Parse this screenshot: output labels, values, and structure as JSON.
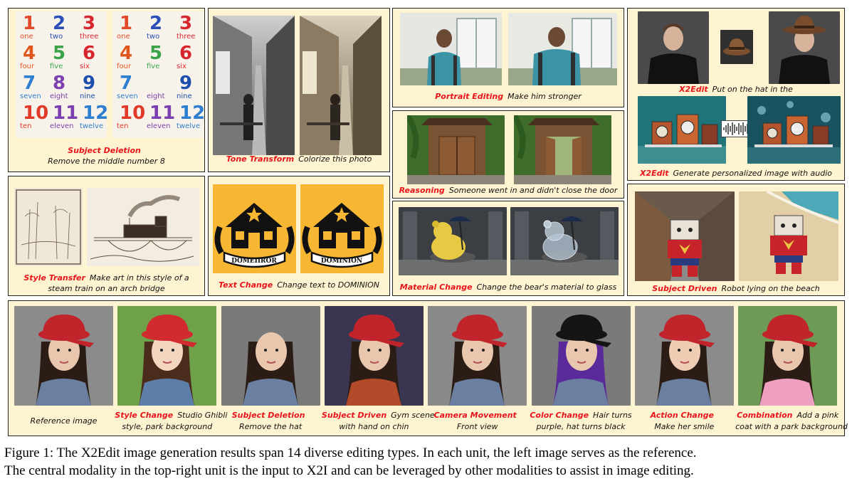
{
  "panels": {
    "subject_deletion": {
      "tag": "Subject Deletion",
      "text": "Remove the middle number 8"
    },
    "tone_transform": {
      "tag": "Tone Transform",
      "text": "Colorize this photo"
    },
    "portrait_editing": {
      "tag": "Portrait Editing",
      "text": "Make him stronger"
    },
    "x2edit_hat": {
      "tag": "X2Edit",
      "text": "Put on the hat in the"
    },
    "reasoning": {
      "tag": "Reasoning",
      "text": "Someone went in and didn't close the door"
    },
    "x2edit_audio": {
      "tag": "X2Edit",
      "text": "Generate personalized image with audio"
    },
    "style_transfer": {
      "tag": "Style Transfer",
      "text1": "Make art in this style of a",
      "text2": "steam train on an arch bridge"
    },
    "text_change": {
      "tag": "Text Change",
      "text": "Change text to DOMINION",
      "logo_before": "DOMEIIROR",
      "logo_after": "DOMINION"
    },
    "material_change": {
      "tag": "Material Change",
      "text": "Change the bear's material to glass"
    },
    "subject_driven": {
      "tag": "Subject Driven",
      "text": "Robot lying on the beach"
    }
  },
  "poster_numbers": [
    {
      "num": "1",
      "word": "one",
      "color": "#e04a2a"
    },
    {
      "num": "2",
      "word": "two",
      "color": "#2b4fb8"
    },
    {
      "num": "3",
      "word": "three",
      "color": "#d8262e"
    },
    {
      "num": "4",
      "word": "four",
      "color": "#e0561f"
    },
    {
      "num": "5",
      "word": "five",
      "color": "#3aa34a"
    },
    {
      "num": "6",
      "word": "six",
      "color": "#d8262e"
    },
    {
      "num": "7",
      "word": "seven",
      "color": "#2f7fd0"
    },
    {
      "num": "8",
      "word": "eight",
      "color": "#7b3fb0"
    },
    {
      "num": "9",
      "word": "nine",
      "color": "#1d4fae"
    },
    {
      "num": "10",
      "word": "ten",
      "color": "#e23a2a"
    },
    {
      "num": "11",
      "word": "eleven",
      "color": "#7b3fb0"
    },
    {
      "num": "12",
      "word": "twelve",
      "color": "#2f7fd0"
    }
  ],
  "poster_after_numbers": [
    "1",
    "2",
    "3",
    "4",
    "5",
    "6",
    "7",
    "",
    "9",
    "10",
    "11",
    "12"
  ],
  "bottom_row": [
    {
      "tag": "",
      "line1": "Reference image",
      "line2": ""
    },
    {
      "tag": "Style Change",
      "line1": "Studio Ghibli",
      "line2": "style, park background"
    },
    {
      "tag": "Subject Deletion",
      "line1": "",
      "line2": "Remove the hat"
    },
    {
      "tag": "Subject Driven",
      "line1": "Gym scene",
      "line2": "with hand on chin"
    },
    {
      "tag": "Camera Movement",
      "line1": "",
      "line2": "Front view"
    },
    {
      "tag": "Color Change",
      "line1": "Hair turns",
      "line2": "purple, hat turns black"
    },
    {
      "tag": "Action Change",
      "line1": "",
      "line2": "Make her smile"
    },
    {
      "tag": "Combination",
      "line1": "Add a pink",
      "line2": "coat with a park background"
    }
  ],
  "caption": {
    "line1": "Figure 1: The X2Edit image generation results span 14 diverse editing types. In each unit, the left image serves as the reference.",
    "line2": "The central modality in the top-right unit is the input to X2I and can be leveraged by other modalities to assist in image editing."
  },
  "colors": {
    "panel_bg": "#fff4d2",
    "tag_red": "#e8141a",
    "logo_yellow": "#f7b733"
  }
}
